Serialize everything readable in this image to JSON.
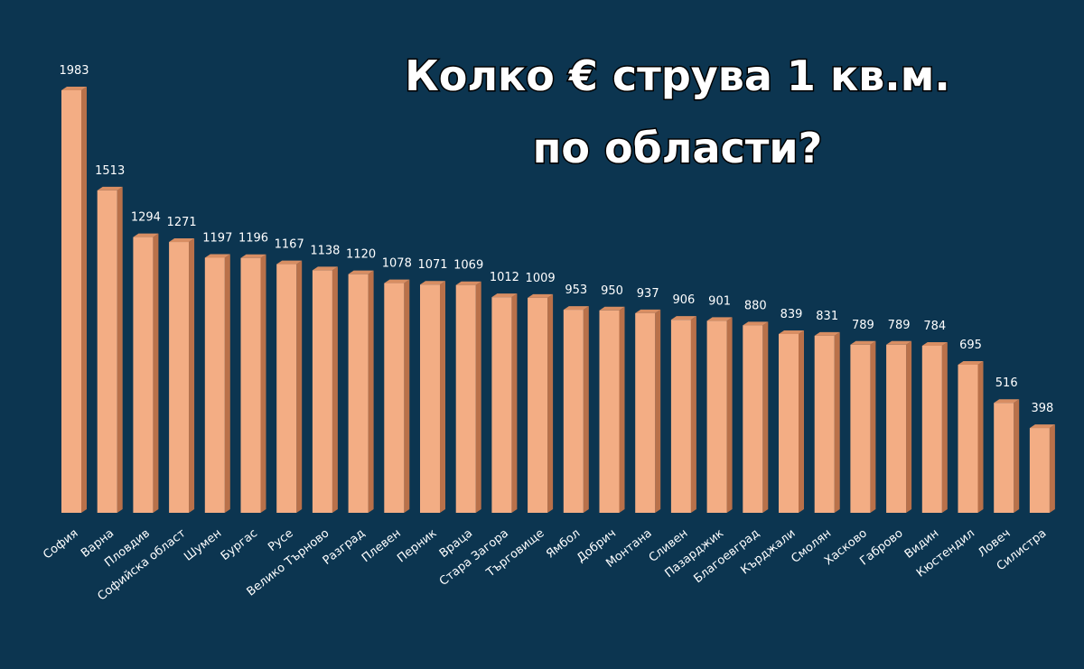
{
  "chart_data": {
    "type": "bar",
    "title": [
      "Колко € струва 1 кв.м.",
      "по области?"
    ],
    "categories": [
      "София",
      "Варна",
      "Пловдив",
      "Софийска област",
      "Шумен",
      "Бургас",
      "Русе",
      "Велико Търново",
      "Разград",
      "Плевен",
      "Перник",
      "Враца",
      "Стара Загора",
      "Търговище",
      "Ямбол",
      "Добрич",
      "Монтана",
      "Сливен",
      "Пазарджик",
      "Благоевград",
      "Кърджали",
      "Смолян",
      "Хасково",
      "Габрово",
      "Видин",
      "Кюстендил",
      "Ловеч",
      "Силистра"
    ],
    "values": [
      1983,
      1513,
      1294,
      1271,
      1197,
      1196,
      1167,
      1138,
      1120,
      1078,
      1071,
      1069,
      1012,
      1009,
      953,
      950,
      937,
      906,
      901,
      880,
      839,
      831,
      789,
      789,
      784,
      695,
      516,
      398
    ],
    "color": "#f3ad84"
  }
}
